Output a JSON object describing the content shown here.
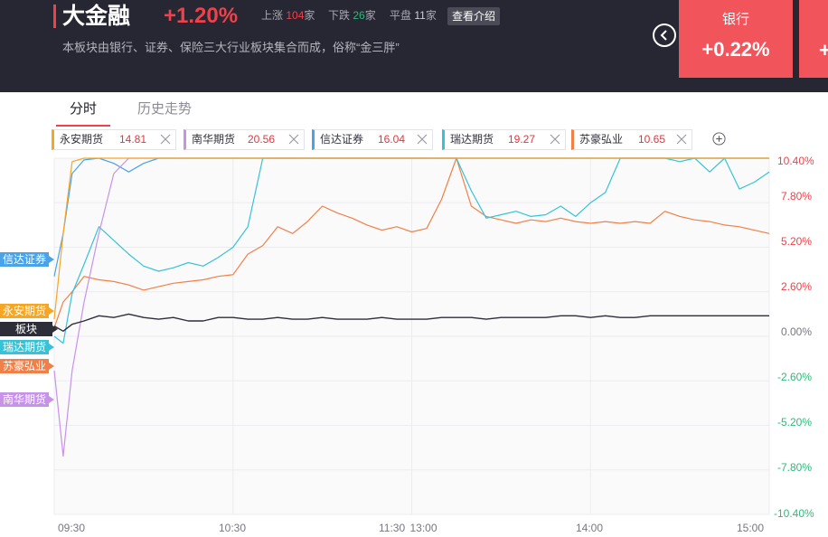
{
  "header": {
    "title": "大金融",
    "change": "+1.20%",
    "up_label": "上涨",
    "up_count": "104",
    "down_label": "下跌",
    "down_count": "26",
    "flat_label": "平盘",
    "flat_count": "11",
    "unit": "家",
    "intro_button": "查看介绍",
    "description": "本板块由银行、证券、保险三大行业板块集合而成，俗称“金三胖”",
    "card": {
      "name": "银行",
      "change": "+0.22%"
    },
    "card_next_partial": "+"
  },
  "tabs": [
    {
      "label": "分时",
      "active": true
    },
    {
      "label": "历史走势",
      "active": false
    }
  ],
  "legend": [
    {
      "name": "永安期货",
      "value": "14.81",
      "color": "#f5a623"
    },
    {
      "name": "南华期货",
      "value": "20.56",
      "color": "#c792ea"
    },
    {
      "name": "信达证券",
      "value": "16.04",
      "color": "#4aa3e8"
    },
    {
      "name": "瑞达期货",
      "value": "19.27",
      "color": "#36c3d8"
    },
    {
      "name": "苏豪弘业",
      "value": "10.65",
      "color": "#f08048"
    }
  ],
  "add_icon": "plus-circle-icon",
  "close_icon": "close-icon",
  "tags": [
    {
      "name": "信达证券",
      "color": "#4aa3e8"
    },
    {
      "name": "永安期货",
      "color": "#f5a623"
    },
    {
      "name": "板块",
      "color": "#2d2e38"
    },
    {
      "name": "瑞达期货",
      "color": "#36c3d8"
    },
    {
      "name": "苏豪弘业",
      "color": "#f08048"
    },
    {
      "name": "南华期货",
      "color": "#c792ea"
    }
  ],
  "colors": {
    "up": "#f0414a",
    "down": "#2dba78",
    "neutral": "#777780",
    "board_line": "#2d2e38"
  },
  "chart_data": {
    "type": "line",
    "x_ticks": [
      "09:30",
      "10:30",
      "11:30 13:00",
      "14:00",
      "15:00"
    ],
    "y_ticks": [
      "10.40%",
      "7.80%",
      "5.20%",
      "2.60%",
      "0.00%",
      "-2.60%",
      "-5.20%",
      "-7.80%",
      "-10.40%"
    ],
    "ylim": [
      -10.4,
      10.4
    ],
    "grid": true,
    "x": [
      0,
      3,
      6,
      10,
      15,
      20,
      25,
      30,
      35,
      40,
      45,
      50,
      55,
      60,
      65,
      70,
      75,
      80,
      85,
      90,
      95,
      100,
      105,
      110,
      115,
      120,
      125,
      130,
      135,
      140,
      145,
      150,
      155,
      160,
      165,
      170,
      175,
      180,
      185,
      190,
      195,
      200,
      205,
      210,
      215,
      220,
      225,
      230,
      235,
      240
    ],
    "series": [
      {
        "name": "板块",
        "color": "#2d2e38",
        "values": [
          0.6,
          0.3,
          0.7,
          0.9,
          1.2,
          1.1,
          1.3,
          1.1,
          1.0,
          1.1,
          0.9,
          0.9,
          1.1,
          1.1,
          1.0,
          1.0,
          1.1,
          1.0,
          1.0,
          1.1,
          1.0,
          1.0,
          1.0,
          1.1,
          1.0,
          1.0,
          1.0,
          1.1,
          1.1,
          1.1,
          1.0,
          1.1,
          1.1,
          1.1,
          1.1,
          1.2,
          1.2,
          1.1,
          1.2,
          1.1,
          1.1,
          1.2,
          1.2,
          1.2,
          1.2,
          1.2,
          1.2,
          1.2,
          1.2,
          1.2
        ]
      },
      {
        "name": "永安期货",
        "color": "#f5a623",
        "values": [
          1.0,
          6.0,
          10.2,
          10.4,
          10.4,
          10.4,
          10.4,
          10.4,
          10.4,
          10.4,
          10.4,
          10.4,
          10.4,
          10.4,
          10.4,
          10.4,
          10.4,
          10.4,
          10.4,
          10.4,
          10.4,
          10.4,
          10.4,
          10.4,
          10.4,
          10.4,
          10.4,
          10.4,
          10.4,
          10.4,
          10.4,
          10.4,
          10.4,
          10.4,
          10.4,
          10.4,
          10.4,
          10.4,
          10.4,
          10.4,
          10.4,
          10.4,
          10.4,
          10.4,
          10.4,
          10.4,
          10.4,
          10.4,
          10.4,
          10.4
        ]
      },
      {
        "name": "南华期货",
        "color": "#c792ea",
        "values": [
          -2.0,
          -7.0,
          -2.0,
          2.0,
          6.0,
          9.5,
          10.4,
          10.4,
          10.4,
          10.4,
          10.4,
          10.4,
          10.4,
          10.4,
          10.4,
          10.4,
          10.4,
          10.4,
          10.4,
          10.4,
          10.4,
          10.4,
          10.4,
          10.4,
          10.4,
          10.4,
          10.4,
          10.4,
          10.4,
          10.4,
          10.4,
          10.4,
          10.4,
          10.4,
          10.4,
          10.4,
          10.4,
          10.4,
          10.4,
          10.4,
          10.4,
          10.4,
          10.4,
          10.4,
          10.4,
          10.4,
          10.4,
          10.4,
          10.4,
          10.4
        ]
      },
      {
        "name": "信达证券",
        "color": "#4aa3e8",
        "values": [
          3.5,
          6.0,
          9.5,
          10.3,
          10.4,
          10.1,
          9.6,
          10.1,
          10.4,
          10.4,
          10.4,
          10.4,
          10.4,
          10.4,
          10.4,
          10.4,
          10.4,
          10.4,
          10.4,
          10.4,
          10.4,
          10.4,
          10.4,
          10.4,
          10.4,
          10.4,
          10.4,
          10.4,
          10.4,
          10.4,
          10.4,
          10.4,
          10.4,
          10.4,
          10.4,
          10.4,
          10.4,
          10.4,
          10.4,
          10.4,
          10.4,
          10.4,
          10.4,
          10.4,
          10.4,
          10.4,
          10.4,
          10.4,
          10.4,
          10.4
        ]
      },
      {
        "name": "瑞达期货",
        "color": "#36c3d8",
        "values": [
          0.0,
          -0.4,
          2.5,
          4.2,
          6.4,
          5.6,
          4.8,
          4.1,
          3.8,
          4.0,
          4.3,
          4.1,
          4.6,
          5.2,
          6.4,
          10.4,
          10.4,
          10.4,
          10.4,
          10.4,
          10.4,
          10.4,
          10.4,
          10.4,
          10.4,
          10.4,
          10.4,
          10.4,
          10.4,
          8.5,
          6.9,
          7.1,
          7.3,
          7.0,
          7.1,
          7.6,
          7.0,
          7.8,
          8.4,
          10.4,
          10.4,
          10.4,
          10.4,
          10.2,
          10.4,
          9.6,
          10.4,
          8.6,
          9.0,
          9.6
        ]
      },
      {
        "name": "苏豪弘业",
        "color": "#f08048",
        "values": [
          0.5,
          2.0,
          2.6,
          3.5,
          3.3,
          3.2,
          3.0,
          2.7,
          2.9,
          3.1,
          3.2,
          3.3,
          3.5,
          3.6,
          4.8,
          5.3,
          6.4,
          6.0,
          6.7,
          7.6,
          7.2,
          6.9,
          6.5,
          6.2,
          6.4,
          6.1,
          6.3,
          8.0,
          10.4,
          7.6,
          7.0,
          6.8,
          6.6,
          6.8,
          6.7,
          6.9,
          6.7,
          6.6,
          6.7,
          6.6,
          6.7,
          6.6,
          7.3,
          7.0,
          6.8,
          6.7,
          6.5,
          6.4,
          6.2,
          6.0
        ]
      }
    ]
  }
}
